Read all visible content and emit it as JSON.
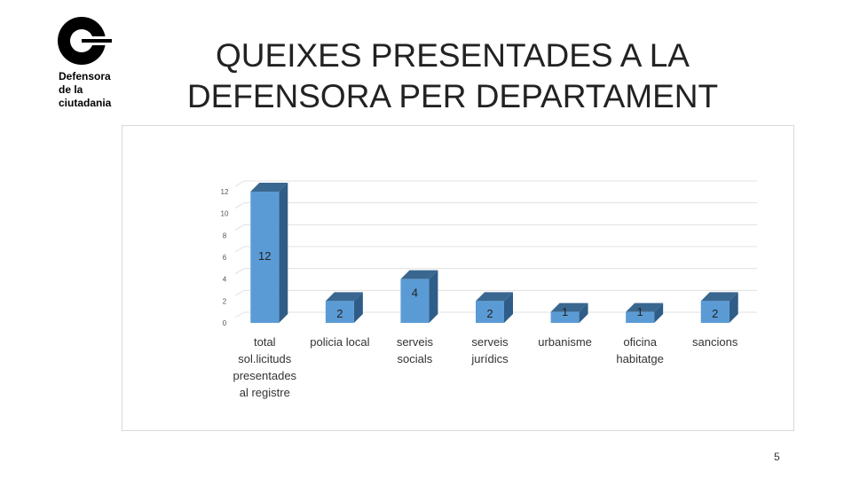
{
  "logo": {
    "name": "defensora-logo",
    "lines": [
      "Defensora",
      "de la",
      "ciutadania"
    ]
  },
  "slide": {
    "title_line1": "QUEIXES PRESENTADES A LA",
    "title_line2": "DEFENSORA PER DEPARTAMENT",
    "page_number": "5"
  },
  "colors": {
    "bar_front": "#5b9bd5",
    "bar_top": "#3a6790",
    "bar_side": "#2f5d87",
    "label_text": "#222222",
    "grid": "#e0e0e0"
  },
  "chart_data": {
    "type": "bar",
    "title": "",
    "xlabel": "",
    "ylabel": "",
    "ylim": [
      0,
      12
    ],
    "yticks": [
      "0",
      "2",
      "4",
      "6",
      "8",
      "10",
      "12"
    ],
    "categories": [
      [
        "total",
        "sol.licituds",
        "presentades",
        "al registre"
      ],
      [
        "policia local"
      ],
      [
        "serveis",
        "socials"
      ],
      [
        "serveis",
        "jurídics"
      ],
      [
        "urbanisme"
      ],
      [
        "oficina",
        "habitatge"
      ],
      [
        "sancions"
      ]
    ],
    "values": [
      12,
      2,
      4,
      2,
      1,
      1,
      2
    ],
    "data_labels": [
      "12",
      "2",
      "4",
      "2",
      "1",
      "1",
      "2"
    ],
    "style": "3d-column",
    "grid": true,
    "legend": "none"
  }
}
